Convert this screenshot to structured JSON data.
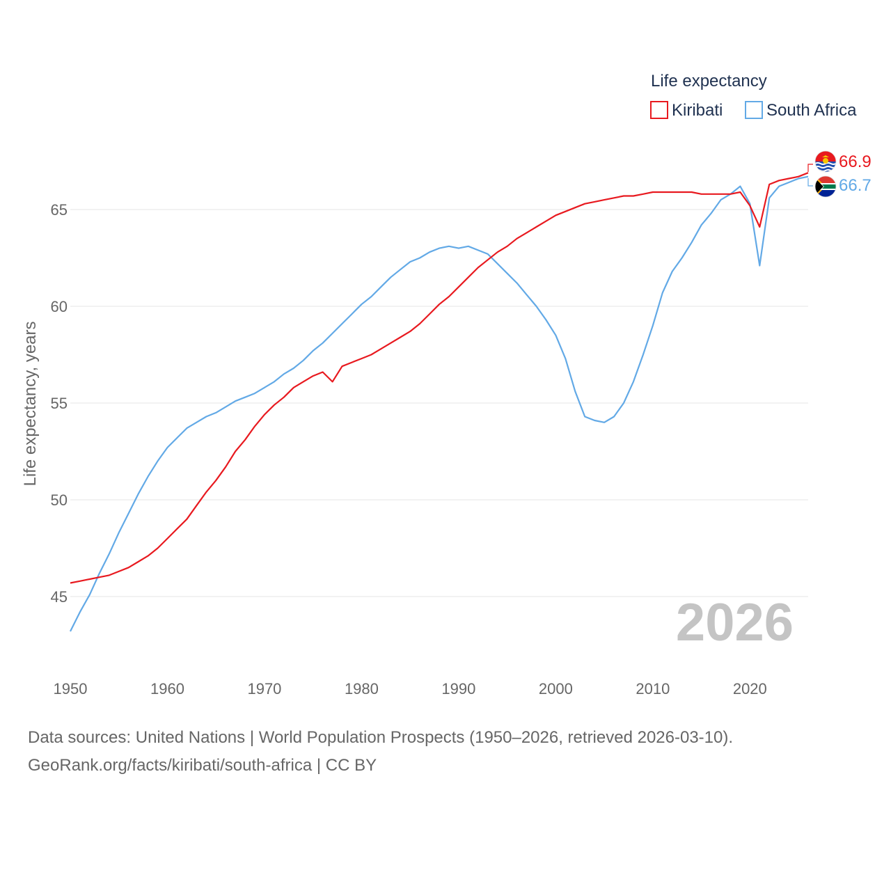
{
  "chart_data": {
    "type": "line",
    "legend_title": "Life expectancy",
    "ylabel": "Life expectancy, years",
    "xlabel": "",
    "xlim": [
      1950,
      2026
    ],
    "ylim": [
      42.5,
      68.5
    ],
    "x_ticks": [
      1950,
      1960,
      1970,
      1980,
      1990,
      2000,
      2010,
      2020
    ],
    "y_ticks": [
      45,
      50,
      55,
      60,
      65
    ],
    "year_watermark": "2026",
    "legend_position": "top-right",
    "x": [
      1950,
      1951,
      1952,
      1953,
      1954,
      1955,
      1956,
      1957,
      1958,
      1959,
      1960,
      1961,
      1962,
      1963,
      1964,
      1965,
      1966,
      1967,
      1968,
      1969,
      1970,
      1971,
      1972,
      1973,
      1974,
      1975,
      1976,
      1977,
      1978,
      1979,
      1980,
      1981,
      1982,
      1983,
      1984,
      1985,
      1986,
      1987,
      1988,
      1989,
      1990,
      1991,
      1992,
      1993,
      1994,
      1995,
      1996,
      1997,
      1998,
      1999,
      2000,
      2001,
      2002,
      2003,
      2004,
      2005,
      2006,
      2007,
      2008,
      2009,
      2010,
      2011,
      2012,
      2013,
      2014,
      2015,
      2016,
      2017,
      2018,
      2019,
      2020,
      2021,
      2022,
      2023,
      2024,
      2025,
      2026
    ],
    "series": [
      {
        "name": "Kiribati",
        "color": "#e8191f",
        "end_label": "66.9",
        "flag": "kiribati-flag-icon",
        "values": [
          45.7,
          45.8,
          45.9,
          46.0,
          46.1,
          46.3,
          46.5,
          46.8,
          47.1,
          47.5,
          48.0,
          48.5,
          49.0,
          49.7,
          50.4,
          51.0,
          51.7,
          52.5,
          53.1,
          53.8,
          54.4,
          54.9,
          55.3,
          55.8,
          56.1,
          56.4,
          56.6,
          56.1,
          56.9,
          57.1,
          57.3,
          57.5,
          57.8,
          58.1,
          58.4,
          58.7,
          59.1,
          59.6,
          60.1,
          60.5,
          61.0,
          61.5,
          62.0,
          62.4,
          62.8,
          63.1,
          63.5,
          63.8,
          64.1,
          64.4,
          64.7,
          64.9,
          65.1,
          65.3,
          65.4,
          65.5,
          65.6,
          65.7,
          65.7,
          65.8,
          65.9,
          65.9,
          65.9,
          65.9,
          65.9,
          65.8,
          65.8,
          65.8,
          65.8,
          65.9,
          65.2,
          64.1,
          66.3,
          66.5,
          66.6,
          66.7,
          66.9
        ]
      },
      {
        "name": "South Africa",
        "color": "#62a9e6",
        "end_label": "66.7",
        "flag": "south-africa-flag-icon",
        "values": [
          43.2,
          44.2,
          45.1,
          46.2,
          47.2,
          48.3,
          49.3,
          50.3,
          51.2,
          52.0,
          52.7,
          53.2,
          53.7,
          54.0,
          54.3,
          54.5,
          54.8,
          55.1,
          55.3,
          55.5,
          55.8,
          56.1,
          56.5,
          56.8,
          57.2,
          57.7,
          58.1,
          58.6,
          59.1,
          59.6,
          60.1,
          60.5,
          61.0,
          61.5,
          61.9,
          62.3,
          62.5,
          62.8,
          63.0,
          63.1,
          63.0,
          63.1,
          62.9,
          62.7,
          62.2,
          61.7,
          61.2,
          60.6,
          60.0,
          59.3,
          58.5,
          57.3,
          55.6,
          54.3,
          54.1,
          54.0,
          54.3,
          55.0,
          56.1,
          57.5,
          59.0,
          60.7,
          61.8,
          62.5,
          63.3,
          64.2,
          64.8,
          65.5,
          65.8,
          66.2,
          65.3,
          62.1,
          65.6,
          66.2,
          66.4,
          66.6,
          66.7
        ]
      }
    ]
  },
  "footer": {
    "line1": "Data sources: United Nations | World Population Prospects (1950–2026, retrieved 2026-03-10).",
    "line2": "GeoRank.org/facts/kiribati/south-africa | CC BY"
  }
}
